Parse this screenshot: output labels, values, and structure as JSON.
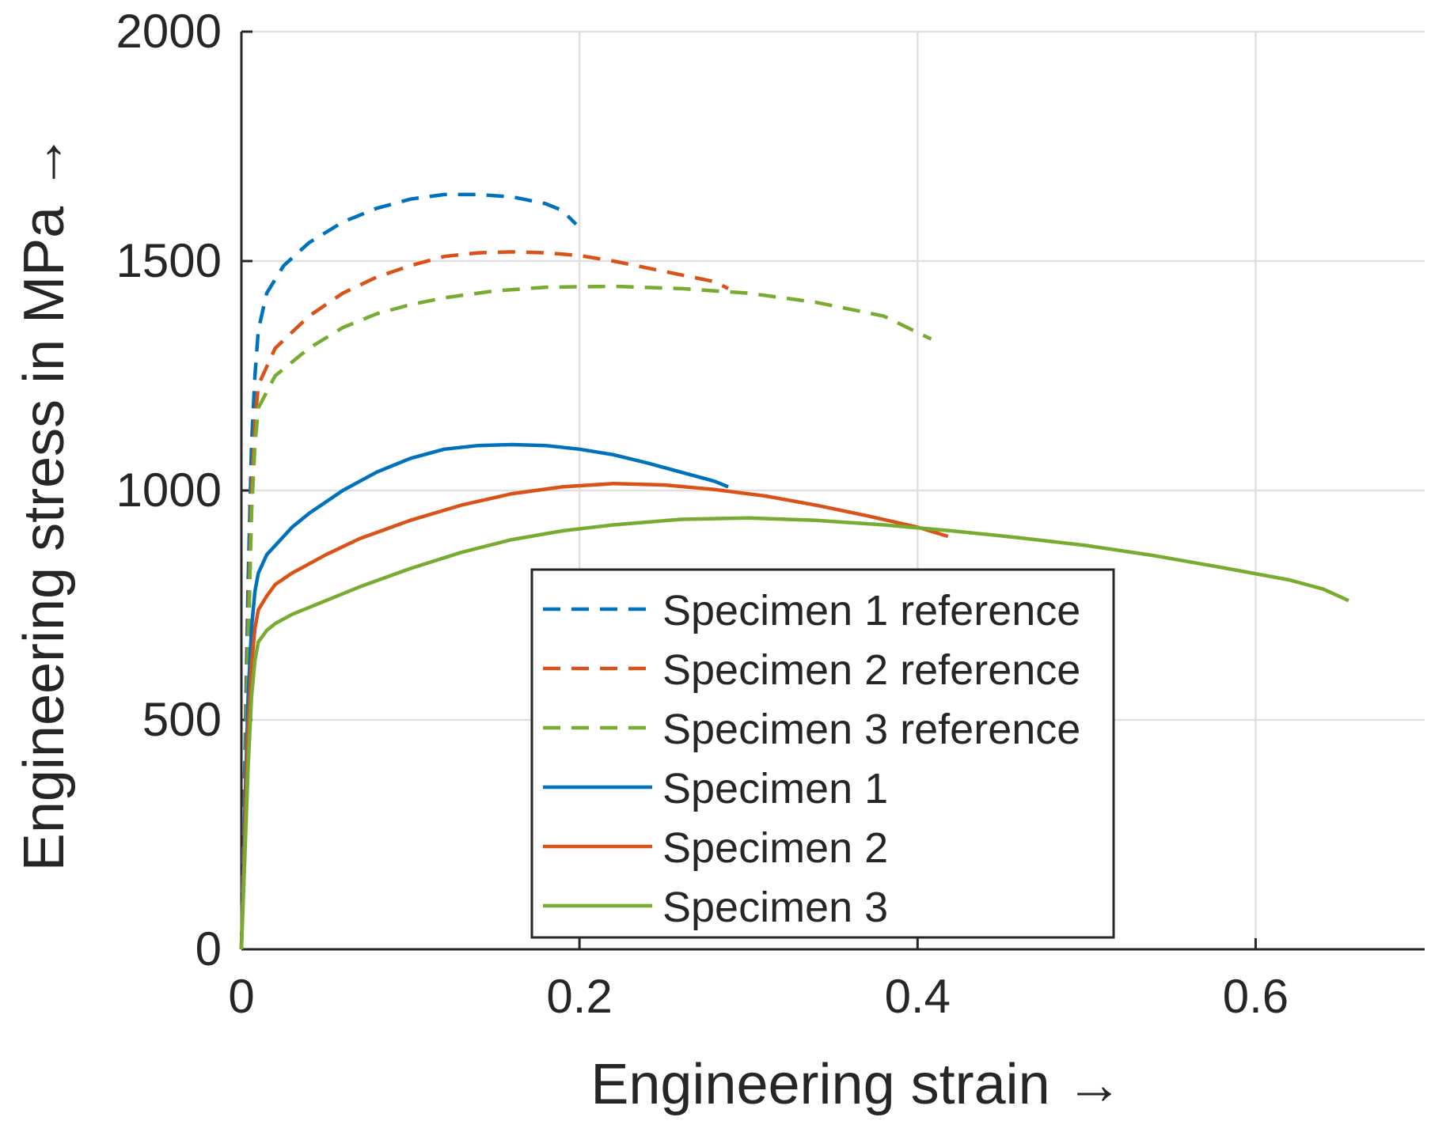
{
  "chart_data": {
    "type": "line",
    "title": "",
    "xlabel": "Engineering strain →",
    "ylabel": "Engineering stress in MPa →",
    "xlim": [
      0,
      0.7
    ],
    "ylim": [
      0,
      2000
    ],
    "x_ticks": [
      0,
      0.2,
      0.4,
      0.6
    ],
    "x_tick_labels": [
      "0",
      "0.2",
      "0.4",
      "0.6"
    ],
    "y_ticks": [
      0,
      500,
      1000,
      1500,
      2000
    ],
    "y_tick_labels": [
      "0",
      "500",
      "1000",
      "1500",
      "2000"
    ],
    "grid": true,
    "legend_position": "bottom-center",
    "series": [
      {
        "name": "Specimen 1 reference",
        "color": "#0072BD",
        "style": "dashed",
        "points": [
          [
            0,
            0
          ],
          [
            0.002,
            400
          ],
          [
            0.004,
            800
          ],
          [
            0.006,
            1100
          ],
          [
            0.008,
            1250
          ],
          [
            0.01,
            1350
          ],
          [
            0.015,
            1430
          ],
          [
            0.025,
            1490
          ],
          [
            0.04,
            1540
          ],
          [
            0.06,
            1585
          ],
          [
            0.08,
            1615
          ],
          [
            0.1,
            1635
          ],
          [
            0.12,
            1645
          ],
          [
            0.14,
            1645
          ],
          [
            0.16,
            1640
          ],
          [
            0.18,
            1625
          ],
          [
            0.19,
            1610
          ],
          [
            0.198,
            1580
          ]
        ]
      },
      {
        "name": "Specimen 2 reference",
        "color": "#D95319",
        "style": "dashed",
        "points": [
          [
            0,
            0
          ],
          [
            0.002,
            350
          ],
          [
            0.004,
            700
          ],
          [
            0.006,
            1000
          ],
          [
            0.008,
            1150
          ],
          [
            0.01,
            1230
          ],
          [
            0.02,
            1310
          ],
          [
            0.04,
            1380
          ],
          [
            0.06,
            1430
          ],
          [
            0.08,
            1465
          ],
          [
            0.1,
            1490
          ],
          [
            0.12,
            1510
          ],
          [
            0.14,
            1518
          ],
          [
            0.16,
            1520
          ],
          [
            0.18,
            1518
          ],
          [
            0.2,
            1512
          ],
          [
            0.22,
            1500
          ],
          [
            0.24,
            1485
          ],
          [
            0.26,
            1470
          ],
          [
            0.28,
            1455
          ],
          [
            0.288,
            1440
          ]
        ]
      },
      {
        "name": "Specimen 3 reference",
        "color": "#77AC30",
        "style": "dashed",
        "points": [
          [
            0,
            0
          ],
          [
            0.002,
            300
          ],
          [
            0.004,
            650
          ],
          [
            0.006,
            950
          ],
          [
            0.008,
            1100
          ],
          [
            0.01,
            1180
          ],
          [
            0.02,
            1250
          ],
          [
            0.04,
            1310
          ],
          [
            0.06,
            1355
          ],
          [
            0.08,
            1385
          ],
          [
            0.1,
            1405
          ],
          [
            0.12,
            1420
          ],
          [
            0.15,
            1435
          ],
          [
            0.18,
            1443
          ],
          [
            0.22,
            1445
          ],
          [
            0.26,
            1440
          ],
          [
            0.3,
            1430
          ],
          [
            0.34,
            1410
          ],
          [
            0.38,
            1380
          ],
          [
            0.408,
            1330
          ]
        ]
      },
      {
        "name": "Specimen 1",
        "color": "#0072BD",
        "style": "solid",
        "points": [
          [
            0,
            0
          ],
          [
            0.002,
            300
          ],
          [
            0.004,
            550
          ],
          [
            0.006,
            700
          ],
          [
            0.008,
            780
          ],
          [
            0.01,
            820
          ],
          [
            0.015,
            860
          ],
          [
            0.02,
            880
          ],
          [
            0.03,
            920
          ],
          [
            0.04,
            950
          ],
          [
            0.06,
            1000
          ],
          [
            0.08,
            1040
          ],
          [
            0.1,
            1070
          ],
          [
            0.12,
            1090
          ],
          [
            0.14,
            1098
          ],
          [
            0.16,
            1100
          ],
          [
            0.18,
            1098
          ],
          [
            0.2,
            1090
          ],
          [
            0.22,
            1078
          ],
          [
            0.24,
            1060
          ],
          [
            0.26,
            1040
          ],
          [
            0.28,
            1020
          ],
          [
            0.288,
            1008
          ]
        ]
      },
      {
        "name": "Specimen 2",
        "color": "#D95319",
        "style": "solid",
        "points": [
          [
            0,
            0
          ],
          [
            0.002,
            250
          ],
          [
            0.004,
            480
          ],
          [
            0.006,
            620
          ],
          [
            0.008,
            700
          ],
          [
            0.01,
            740
          ],
          [
            0.015,
            770
          ],
          [
            0.02,
            795
          ],
          [
            0.03,
            820
          ],
          [
            0.05,
            860
          ],
          [
            0.07,
            895
          ],
          [
            0.1,
            935
          ],
          [
            0.13,
            968
          ],
          [
            0.16,
            993
          ],
          [
            0.19,
            1008
          ],
          [
            0.22,
            1015
          ],
          [
            0.25,
            1012
          ],
          [
            0.28,
            1002
          ],
          [
            0.31,
            988
          ],
          [
            0.34,
            968
          ],
          [
            0.37,
            945
          ],
          [
            0.4,
            920
          ],
          [
            0.418,
            900
          ]
        ]
      },
      {
        "name": "Specimen 3",
        "color": "#77AC30",
        "style": "solid",
        "points": [
          [
            0,
            0
          ],
          [
            0.002,
            200
          ],
          [
            0.004,
            400
          ],
          [
            0.006,
            550
          ],
          [
            0.008,
            630
          ],
          [
            0.01,
            670
          ],
          [
            0.015,
            695
          ],
          [
            0.02,
            710
          ],
          [
            0.03,
            730
          ],
          [
            0.05,
            760
          ],
          [
            0.07,
            790
          ],
          [
            0.1,
            830
          ],
          [
            0.13,
            865
          ],
          [
            0.16,
            893
          ],
          [
            0.19,
            912
          ],
          [
            0.22,
            925
          ],
          [
            0.26,
            937
          ],
          [
            0.3,
            940
          ],
          [
            0.34,
            935
          ],
          [
            0.38,
            925
          ],
          [
            0.42,
            912
          ],
          [
            0.46,
            897
          ],
          [
            0.5,
            880
          ],
          [
            0.54,
            858
          ],
          [
            0.58,
            832
          ],
          [
            0.62,
            805
          ],
          [
            0.64,
            785
          ],
          [
            0.655,
            760
          ]
        ]
      }
    ]
  }
}
